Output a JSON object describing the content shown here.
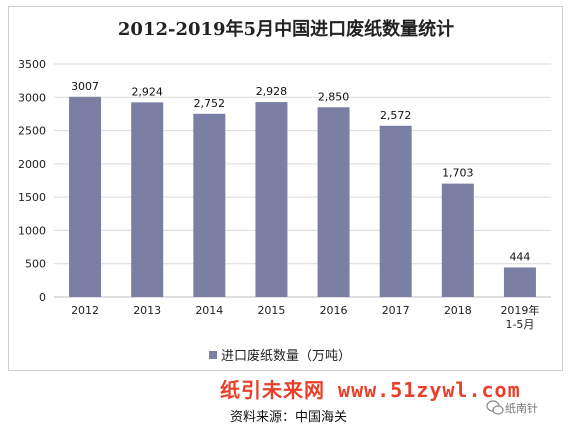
{
  "chart_data": {
    "type": "bar",
    "title": "2012-2019年5月中国进口废纸数量统计",
    "categories": [
      "2012",
      "2013",
      "2014",
      "2015",
      "2016",
      "2017",
      "2018",
      "2019年\n1-5月"
    ],
    "series": [
      {
        "name": "进口废纸数量（万吨）",
        "values": [
          3007,
          2924,
          2752,
          2928,
          2850,
          2572,
          1703,
          444
        ],
        "labels": [
          "3007",
          "2,924",
          "2,752",
          "2,928",
          "2,850",
          "2,572",
          "1,703",
          "444"
        ]
      }
    ],
    "ylim": [
      0,
      3500
    ],
    "yticks": [
      0,
      500,
      1000,
      1500,
      2000,
      2500,
      3000,
      3500
    ],
    "grid": true,
    "legend": "bottom",
    "colors": {
      "bar": "#7a7fa3",
      "grid": "#d9d9d9"
    }
  },
  "watermark": "纸引未来网 www.51zywl.com",
  "source": "资料来源：中国海关",
  "brand": "纸南针",
  "brand_icon": "chat-bubble-icon"
}
